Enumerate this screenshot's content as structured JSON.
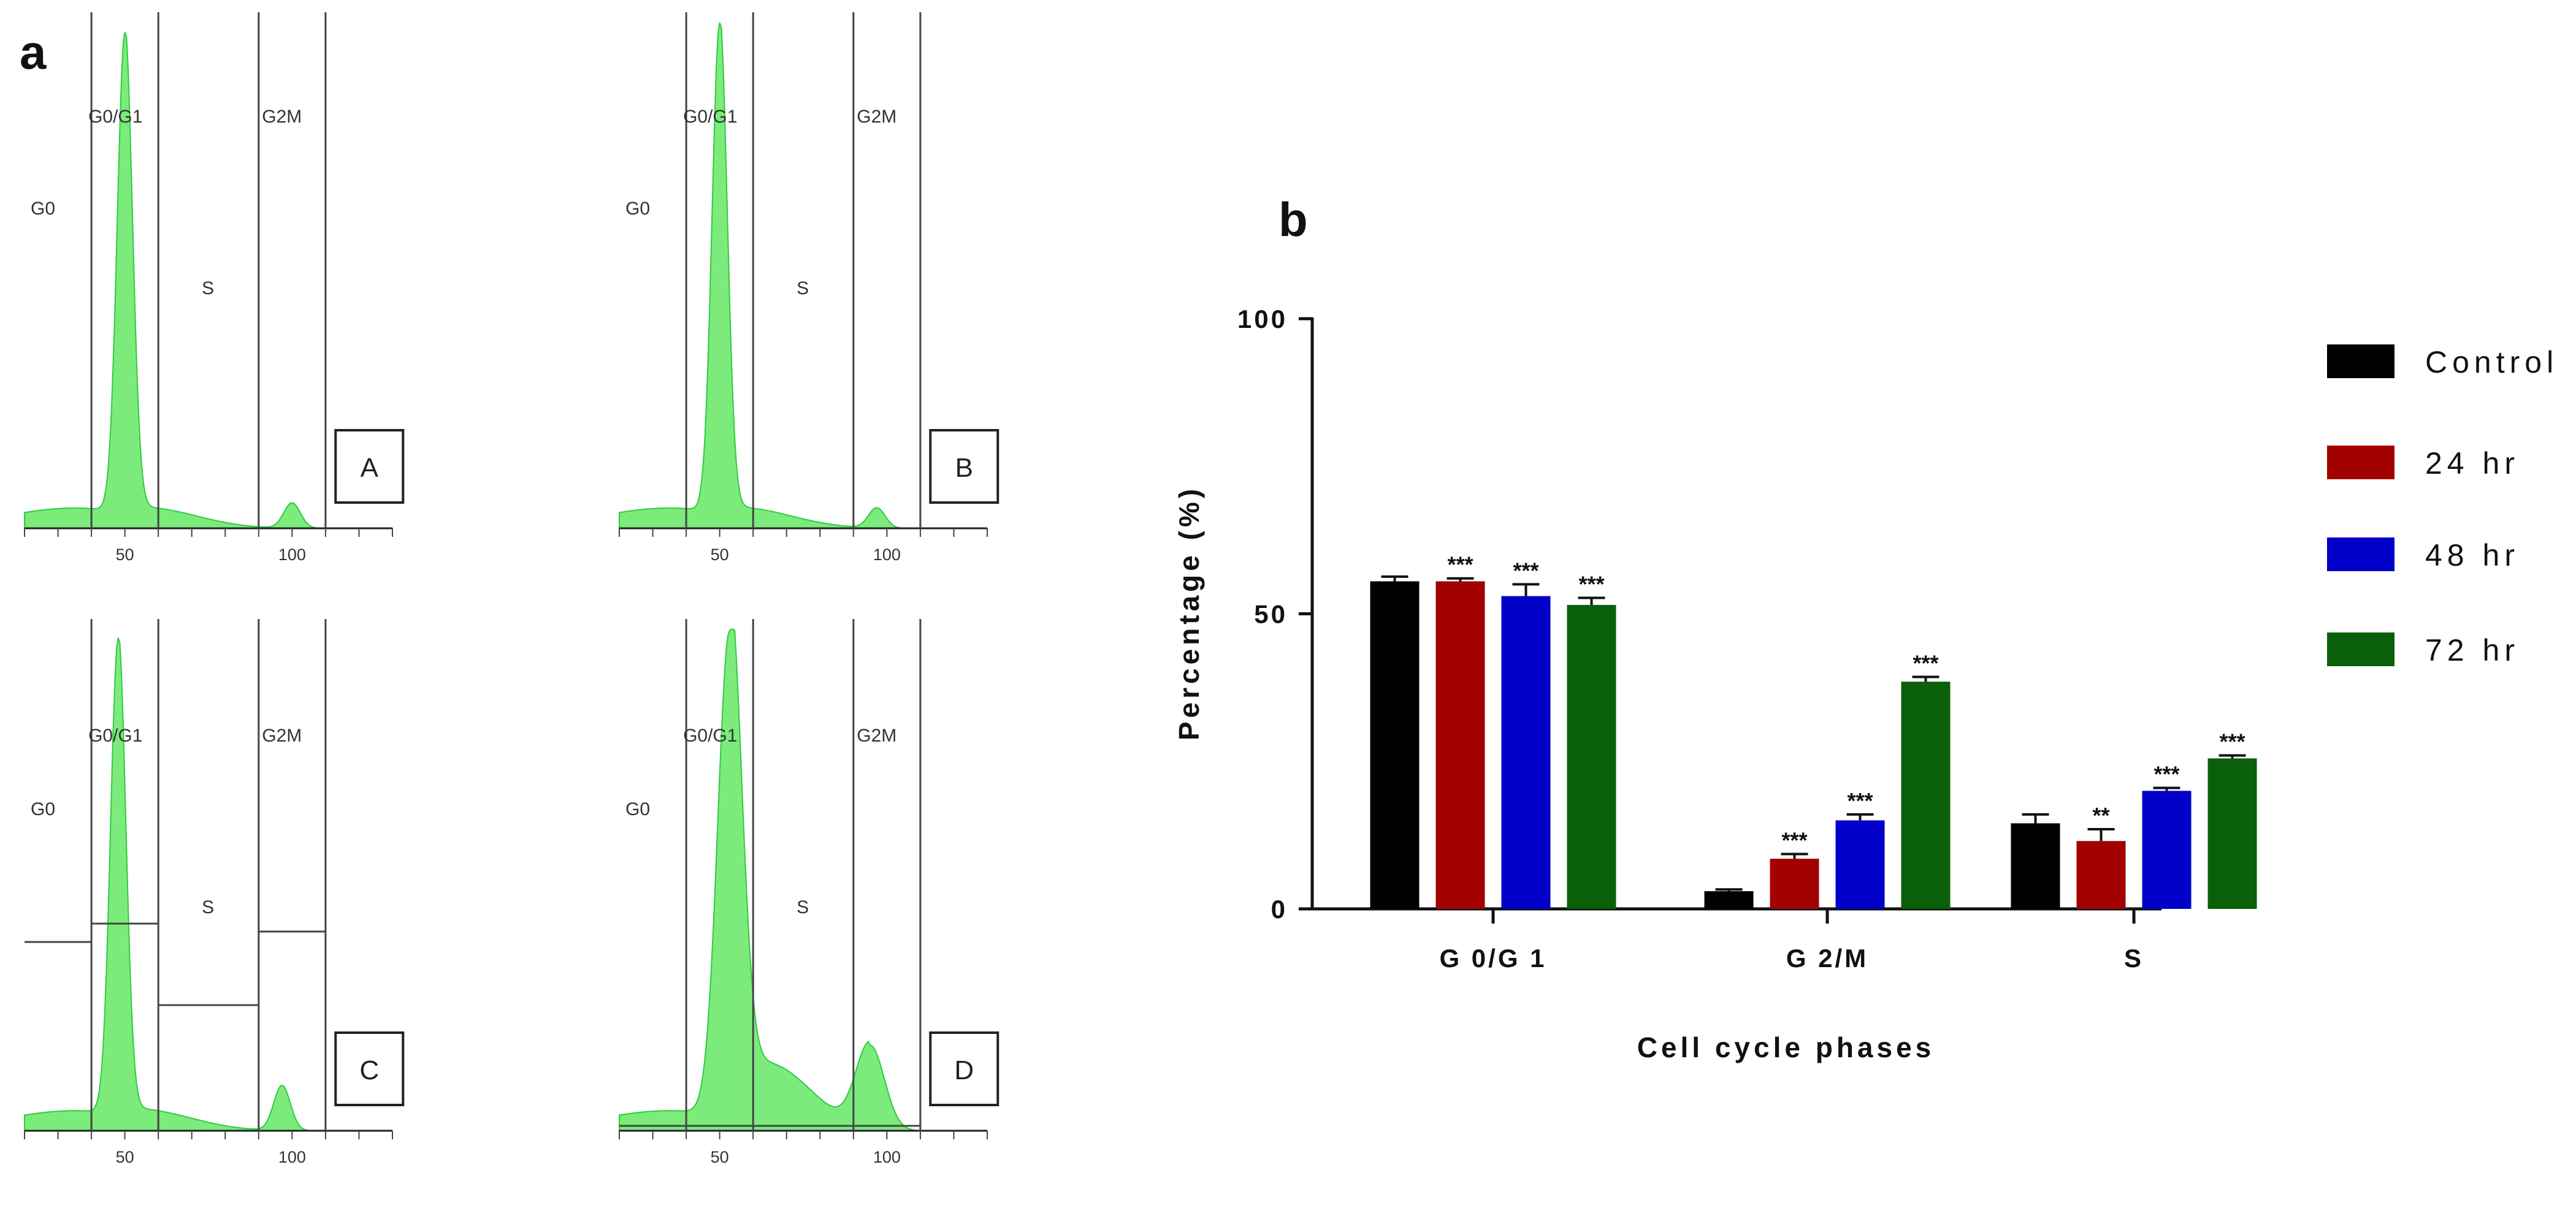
{
  "figure_labels": {
    "panel_a": "a",
    "panel_b": "b"
  },
  "chart_data": [
    {
      "type": "histogram",
      "panel": "A",
      "gates": [
        "G0",
        "G0/G1",
        "S",
        "G2M"
      ],
      "x_ticks": [
        50,
        100
      ],
      "xlim": [
        20,
        130
      ],
      "gate_bounds": [
        40,
        60,
        90,
        110
      ],
      "peaks": [
        {
          "at": 50,
          "rel_height": 0.95
        },
        {
          "at": 100,
          "rel_height": 0.05
        }
      ]
    },
    {
      "type": "histogram",
      "panel": "B",
      "gates": [
        "G0",
        "G0/G1",
        "S",
        "G2M"
      ],
      "x_ticks": [
        50,
        100
      ],
      "xlim": [
        20,
        130
      ],
      "gate_bounds": [
        40,
        60,
        90,
        110
      ],
      "peaks": [
        {
          "at": 50,
          "rel_height": 0.97
        },
        {
          "at": 97,
          "rel_height": 0.04
        }
      ]
    },
    {
      "type": "histogram",
      "panel": "C",
      "gates": [
        "G0",
        "G0/G1",
        "S",
        "G2M"
      ],
      "x_ticks": [
        50,
        100
      ],
      "xlim": [
        20,
        130
      ],
      "gate_bounds": [
        40,
        60,
        90,
        110
      ],
      "peaks": [
        {
          "at": 48,
          "rel_height": 0.95
        },
        {
          "at": 97,
          "rel_height": 0.09
        }
      ]
    },
    {
      "type": "histogram",
      "panel": "D",
      "gates": [
        "G0",
        "G0/G1",
        "S",
        "G2M"
      ],
      "x_ticks": [
        50,
        100
      ],
      "xlim": [
        20,
        130
      ],
      "gate_bounds": [
        40,
        60,
        90,
        110
      ],
      "peaks": [
        {
          "at": 53,
          "rel_height": 0.97
        },
        {
          "at": 95,
          "rel_height": 0.17
        }
      ]
    },
    {
      "type": "bar",
      "panel": "b",
      "title": "",
      "categories": [
        "G0/G1",
        "G2/M",
        "S"
      ],
      "category_display": [
        "G 0/G 1",
        "G 2/M",
        "S"
      ],
      "series": [
        {
          "name": "Control",
          "color": "#000000",
          "values": [
            55.5,
            3,
            14.5
          ],
          "errors": [
            0.8,
            0.3,
            1.5
          ],
          "sig": [
            "",
            "",
            ""
          ]
        },
        {
          "name": "24 hr",
          "color": "#a30000",
          "values": [
            55.5,
            8.5,
            11.5
          ],
          "errors": [
            0.5,
            0.8,
            2.0
          ],
          "sig": [
            "***",
            "***",
            "**"
          ]
        },
        {
          "name": "48 hr",
          "color": "#0000c8",
          "values": [
            53,
            15,
            20
          ],
          "errors": [
            2.0,
            1.0,
            0.5
          ],
          "sig": [
            "***",
            "***",
            "***"
          ]
        },
        {
          "name": "72 hr",
          "color": "#0a5f0a",
          "values": [
            51.5,
            38.5,
            25.5
          ],
          "errors": [
            1.2,
            0.8,
            0.5
          ],
          "sig": [
            "***",
            "***",
            "***"
          ]
        }
      ],
      "legend": [
        "Control",
        "24 hr",
        "48 hr",
        "72 hr"
      ],
      "legend_display": [
        "Control",
        "24 hr",
        "48 hr",
        "72 hr"
      ],
      "ylim": [
        0,
        100
      ],
      "y_ticks": [
        0,
        50,
        100
      ],
      "xlabel": "Cell cycle phases",
      "ylabel": "Percentage (%)",
      "ylabel_display": "Percentage (%)"
    }
  ]
}
